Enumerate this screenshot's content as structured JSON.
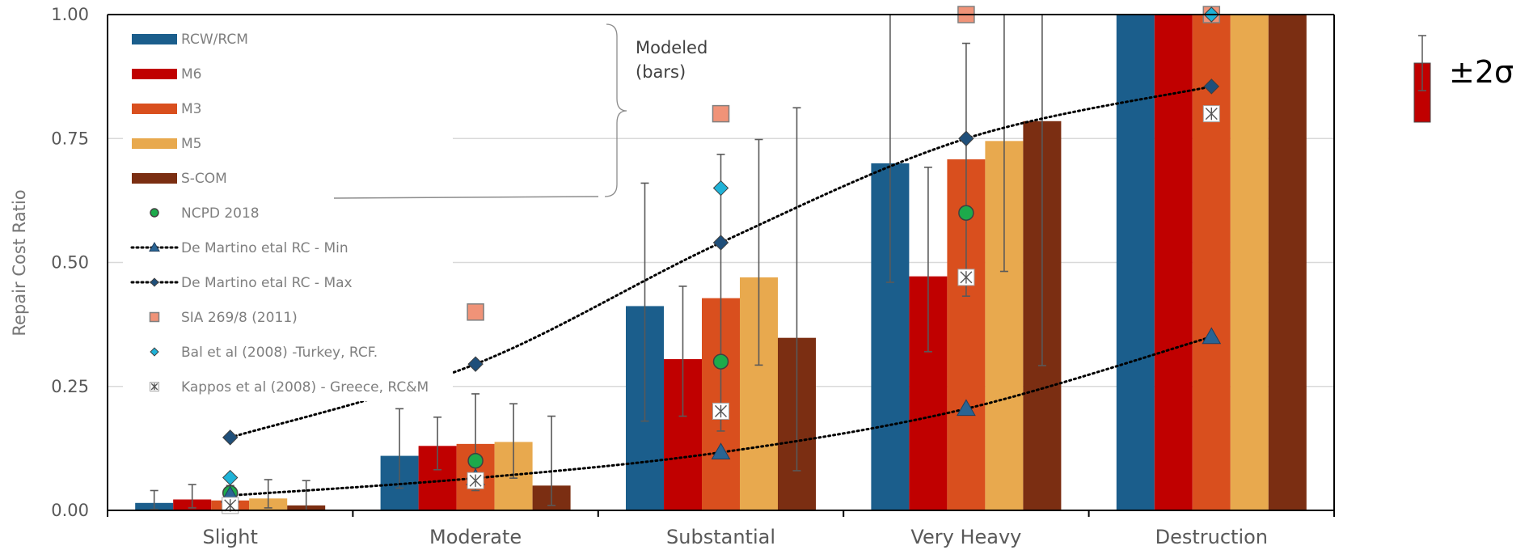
{
  "chart_data": {
    "type": "bar",
    "ylabel": "Repair Cost Ratio",
    "ylim": [
      0,
      1
    ],
    "yticks": [
      "0.00",
      "0.25",
      "0.50",
      "0.75",
      "1.00"
    ],
    "grid": true,
    "legend_position": "top-left",
    "categories": [
      "Slight",
      "Moderate",
      "Substantial",
      "Very Heavy",
      "Destruction"
    ],
    "series": [
      {
        "name": "RCW/RCM",
        "color": "#1b5e8c",
        "values": [
          0.015,
          0.11,
          0.412,
          0.7,
          1.0
        ],
        "err_low": [
          0.002,
          0.045,
          0.18,
          0.46,
          1.0
        ],
        "err_high": [
          0.04,
          0.205,
          0.66,
          1.0,
          1.0
        ]
      },
      {
        "name": "M6",
        "color": "#c00000",
        "values": [
          0.022,
          0.13,
          0.305,
          0.472,
          1.0
        ],
        "err_low": [
          0.005,
          0.082,
          0.19,
          0.32,
          1.0
        ],
        "err_high": [
          0.052,
          0.188,
          0.452,
          0.692,
          1.0
        ]
      },
      {
        "name": "M3",
        "color": "#d94f1e",
        "values": [
          0.02,
          0.134,
          0.428,
          0.708,
          1.0
        ],
        "err_low": [
          0.006,
          0.04,
          0.16,
          0.432,
          1.0
        ],
        "err_high": [
          0.05,
          0.235,
          0.718,
          0.942,
          1.0
        ]
      },
      {
        "name": "M5",
        "color": "#e8a94e",
        "values": [
          0.024,
          0.138,
          0.47,
          0.745,
          1.0
        ],
        "err_low": [
          0.005,
          0.065,
          0.293,
          0.482,
          1.0
        ],
        "err_high": [
          0.062,
          0.215,
          0.748,
          1.0,
          1.0
        ]
      },
      {
        "name": "S-COM",
        "color": "#7b2e12",
        "values": [
          0.01,
          0.05,
          0.348,
          0.785,
          1.0
        ],
        "err_low": [
          0.0,
          0.01,
          0.08,
          0.292,
          1.0
        ],
        "err_high": [
          0.06,
          0.19,
          0.812,
          1.0,
          1.0
        ]
      }
    ],
    "points": [
      {
        "name": "NCPD 2018",
        "marker": "circle",
        "color": "#1daa4b",
        "values": [
          0.035,
          0.1,
          0.3,
          0.6,
          null
        ]
      },
      {
        "name": "De Martino etal RC - Min",
        "marker": "triangle",
        "color": "#2a6493",
        "line": "dotted",
        "values": [
          0.03,
          0.065,
          0.117,
          0.205,
          0.35
        ]
      },
      {
        "name": "De Martino etal RC - Max",
        "marker": "diamond",
        "color": "#1f4f7a",
        "line": "dotted",
        "values": [
          0.147,
          0.295,
          0.54,
          0.75,
          0.855
        ]
      },
      {
        "name": "SIA 269/8 (2011)",
        "marker": "square",
        "color": "#f09378",
        "values": [
          null,
          0.4,
          0.8,
          1.0,
          1.0
        ]
      },
      {
        "name": "Bal et al (2008) -Turkey, RCF.",
        "marker": "diamond",
        "color": "#1fb3d8",
        "values": [
          0.066,
          null,
          0.65,
          null,
          1.0
        ]
      },
      {
        "name": "Kappos et al (2008) - Greece, RC&M",
        "marker": "asterisk-box",
        "color": "#555555",
        "values": [
          0.01,
          0.06,
          0.2,
          0.47,
          0.8
        ]
      }
    ],
    "annotations": {
      "modeled": [
        "Modeled",
        "(bars)"
      ],
      "sigma": "±2σ"
    }
  }
}
